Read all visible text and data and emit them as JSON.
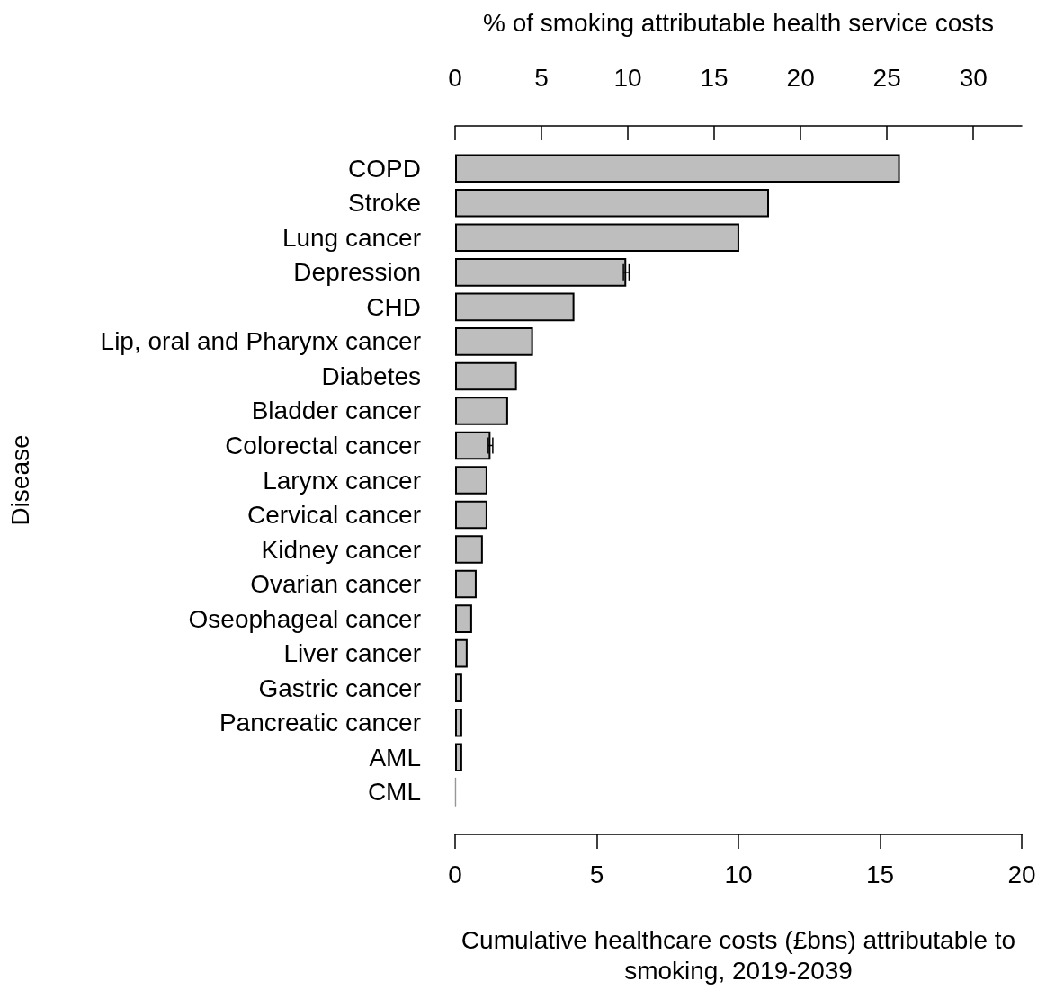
{
  "chart_data": {
    "type": "bar",
    "orientation": "horizontal",
    "categories": [
      "COPD",
      "Stroke",
      "Lung cancer",
      "Depression",
      "CHD",
      "Lip, oral and Pharynx cancer",
      "Diabetes",
      "Bladder cancer",
      "Colorectal cancer",
      "Larynx cancer",
      "Cervical cancer",
      "Kidney cancer",
      "Ovarian cancer",
      "Oseophageal cancer",
      "Liver cancer",
      "Gastric cancer",
      "Pancreatic cancer",
      "AML",
      "CML"
    ],
    "values": [
      15.7,
      11.08,
      10.03,
      6.04,
      4.21,
      2.75,
      2.18,
      1.87,
      1.25,
      1.14,
      1.14,
      0.98,
      0.76,
      0.6,
      0.44,
      0.25,
      0.25,
      0.25,
      0.03
    ],
    "errors": [
      null,
      null,
      null,
      0.1,
      null,
      null,
      null,
      null,
      0.08,
      null,
      null,
      null,
      null,
      null,
      null,
      null,
      null,
      null,
      null
    ],
    "color": "#bebebe",
    "xlim": [
      0,
      20
    ],
    "xticks": [
      0,
      5,
      10,
      15,
      20
    ],
    "x2lim": [
      0,
      32.8
    ],
    "x2ticks": [
      0,
      5,
      10,
      15,
      20,
      25,
      30
    ],
    "xlabel": "Cumulative healthcare costs (£bns) attributable to smoking, 2019-2039",
    "x2label": "% of smoking attributable health service costs",
    "ylabel": "Disease",
    "grid": false
  }
}
